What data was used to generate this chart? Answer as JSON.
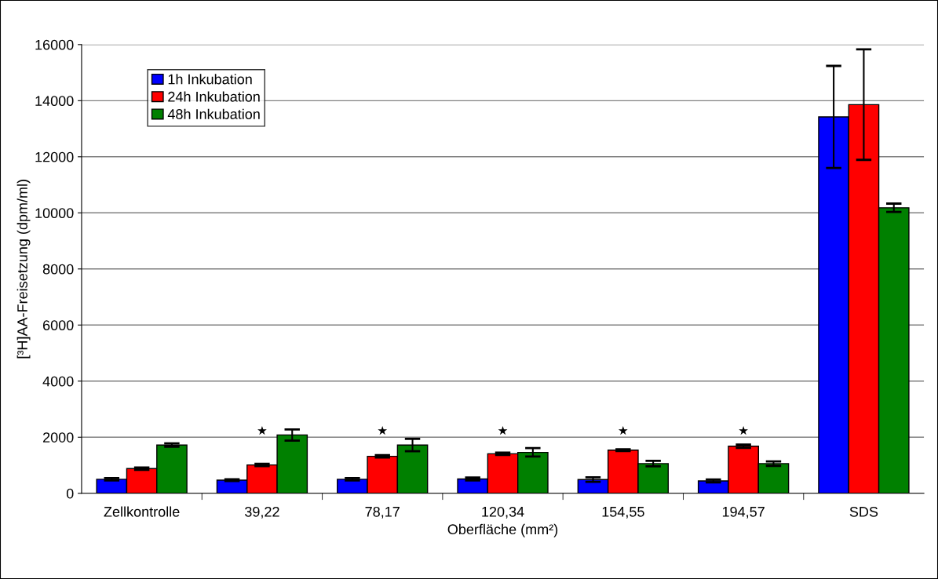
{
  "chart_data": {
    "type": "bar",
    "xlabel": "Oberfläche (mm²)",
    "ylabel": "[³H]AA-Freisetzung (dpm/ml)",
    "categories": [
      "Zellkontrolle",
      "39,22",
      "78,17",
      "120,34",
      "154,55",
      "194,57",
      "SDS"
    ],
    "series": [
      {
        "name": "1h Inkubation",
        "color": "#0000ff",
        "values": [
          500,
          470,
          500,
          510,
          490,
          440,
          13420
        ],
        "errors": [
          40,
          30,
          40,
          50,
          80,
          50,
          1820
        ]
      },
      {
        "name": "24h Inkubation",
        "color": "#ff0000",
        "values": [
          880,
          1010,
          1320,
          1410,
          1540,
          1680,
          13860
        ],
        "errors": [
          40,
          40,
          40,
          40,
          30,
          60,
          1970
        ]
      },
      {
        "name": "48h Inkubation",
        "color": "#008000",
        "values": [
          1720,
          2080,
          1720,
          1460,
          1060,
          1060,
          10180
        ],
        "errors": [
          60,
          200,
          220,
          150,
          100,
          80,
          150
        ]
      }
    ],
    "annotations": [
      "★",
      "★",
      "★",
      "★",
      "★"
    ],
    "ylim": [
      0,
      16000
    ],
    "yticks": [
      0,
      2000,
      4000,
      6000,
      8000,
      10000,
      12000,
      14000,
      16000
    ],
    "grid": "y",
    "legend": "top left"
  }
}
